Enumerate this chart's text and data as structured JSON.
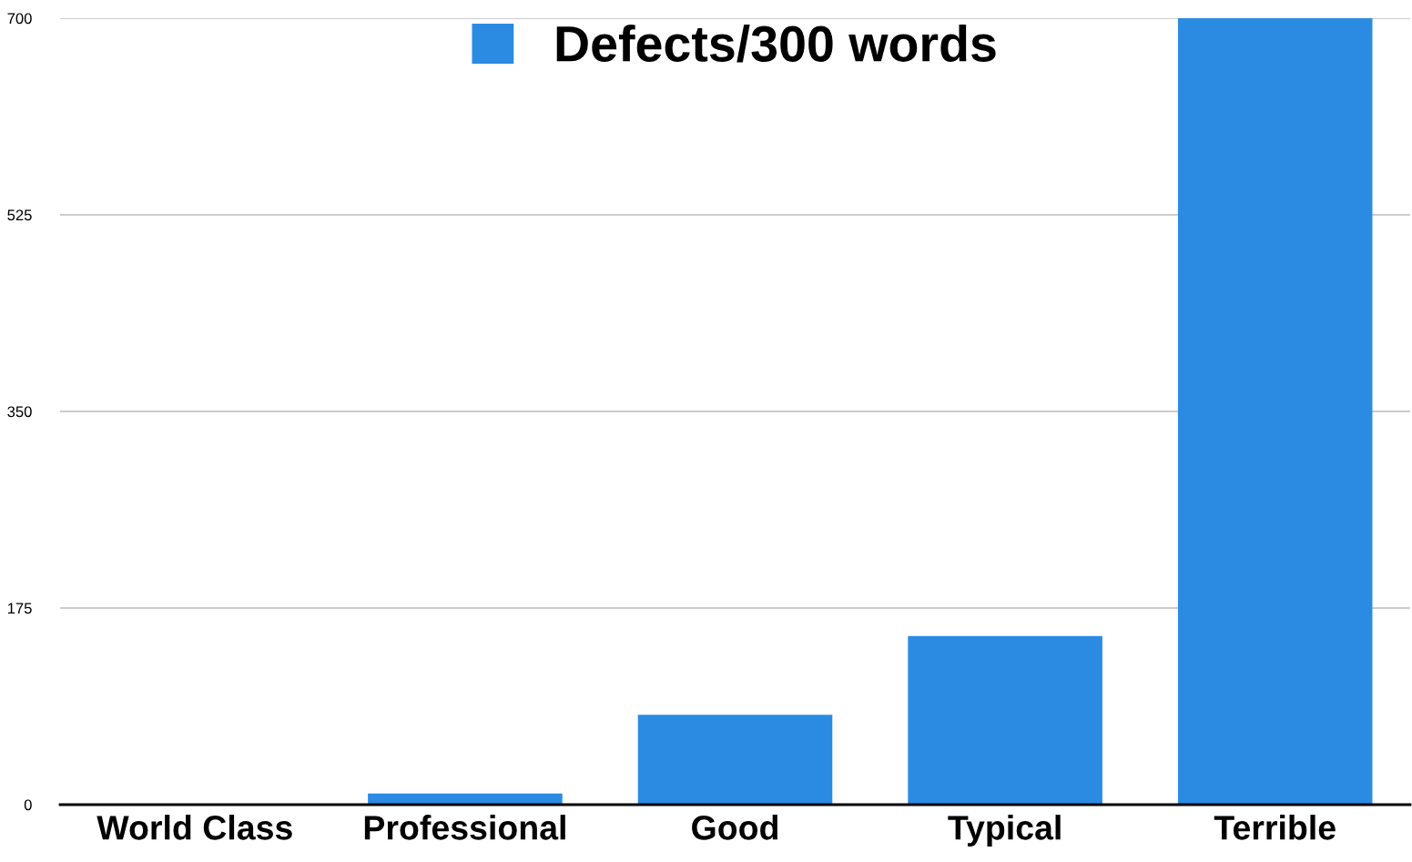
{
  "chart_data": {
    "type": "bar",
    "categories": [
      "World Class",
      "Professional",
      "Good",
      "Typical",
      "Terrible"
    ],
    "series": [
      {
        "name": "Defects/300 words",
        "color": "#2b8be3",
        "values": [
          0,
          10,
          80,
          150,
          700
        ]
      }
    ],
    "ylim": [
      0,
      700
    ],
    "yticks": [
      0,
      175,
      350,
      525,
      700
    ],
    "grid": "y",
    "legend": "top"
  }
}
